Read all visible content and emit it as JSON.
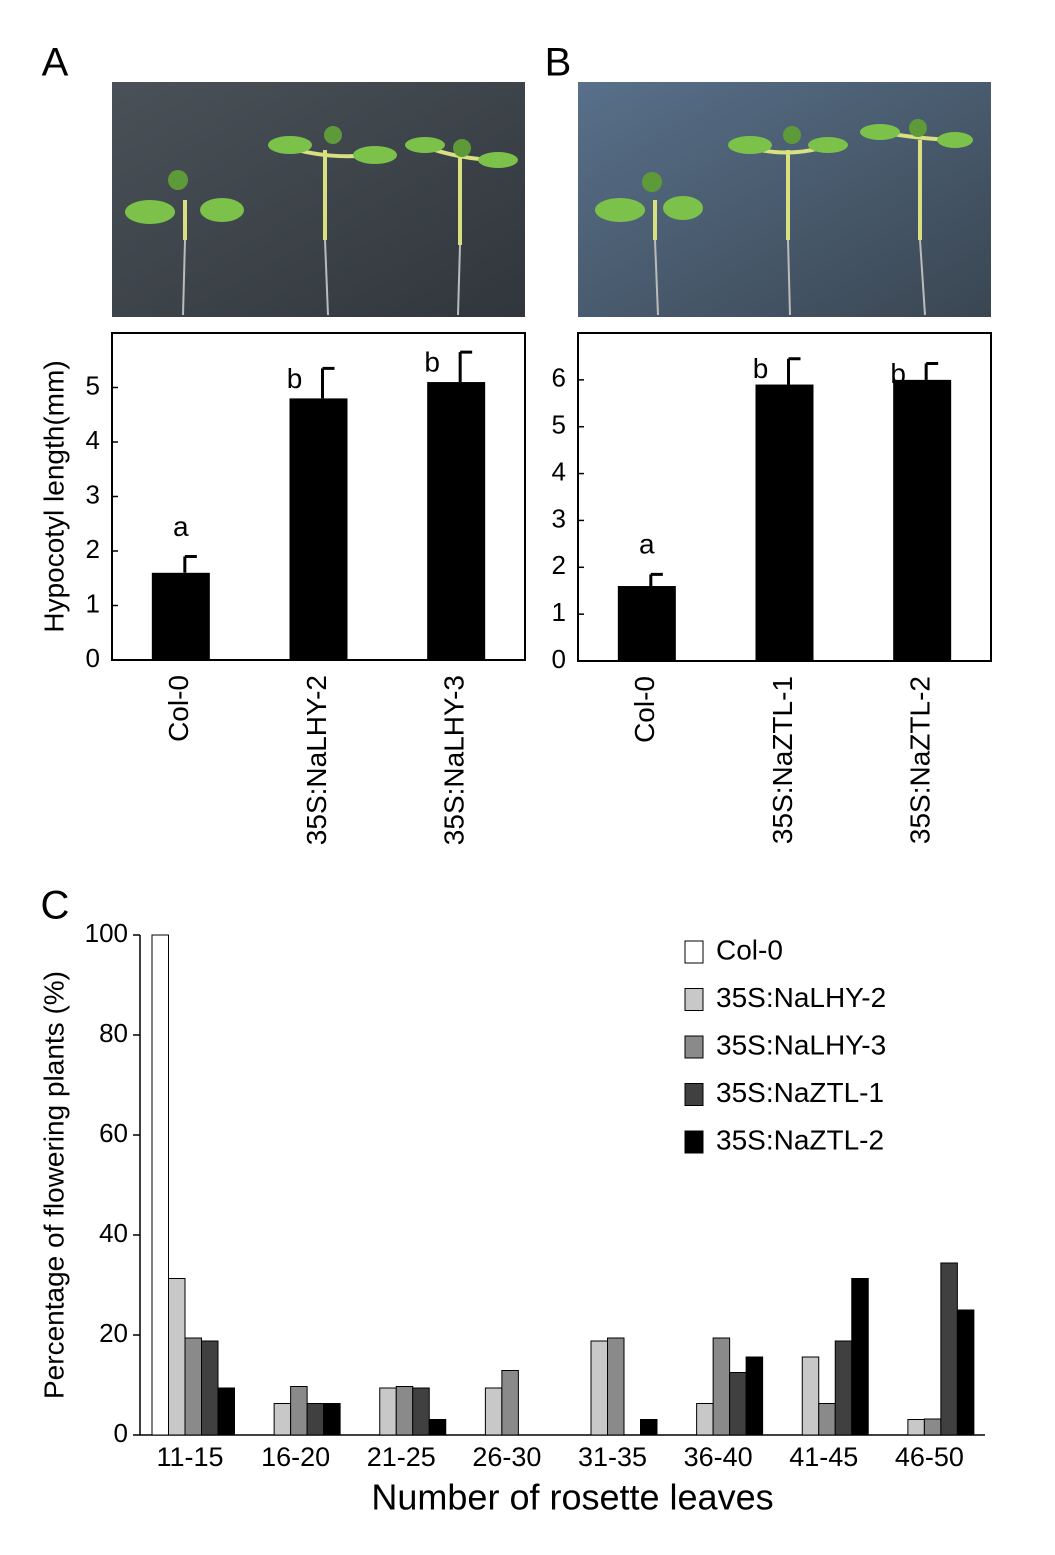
{
  "chart_data": [
    {
      "type": "bar",
      "panel_label": "A",
      "ylabel": "Hypocotyl length(mm)",
      "categories": [
        "Col-0",
        "35S:NaLHY-2",
        "35S:NaLHY-3"
      ],
      "values": [
        1.6,
        4.8,
        5.1
      ],
      "errors": [
        0.3,
        0.55,
        0.55
      ],
      "annotations": [
        "a",
        "b",
        "b"
      ],
      "color": "#000000",
      "ylim": [
        0,
        6
      ],
      "yticks": [
        0,
        1,
        2,
        3,
        4,
        5
      ]
    },
    {
      "type": "bar",
      "panel_label": "B",
      "categories": [
        "Col-0",
        "35S:NaZTL-1",
        "35S:NaZTL-2"
      ],
      "values": [
        1.6,
        5.9,
        6.0
      ],
      "errors": [
        0.25,
        0.55,
        0.35
      ],
      "annotations": [
        "a",
        "b",
        "b"
      ],
      "color": "#000000",
      "ylim": [
        0,
        7
      ],
      "yticks": [
        0,
        1,
        2,
        3,
        4,
        5,
        6
      ]
    },
    {
      "type": "grouped_bar",
      "panel_label": "C",
      "xlabel": "Number of rosette leaves",
      "ylabel": "Percentage of flowering plants (%)",
      "categories": [
        "11-15",
        "16-20",
        "21-25",
        "26-30",
        "31-35",
        "36-40",
        "41-45",
        "46-50"
      ],
      "series": [
        {
          "name": "Col-0",
          "color": "#ffffff",
          "values": [
            100,
            0,
            0,
            0,
            0,
            0,
            0,
            0
          ]
        },
        {
          "name": "35S:NaLHY-2",
          "color": "#c8c8c8",
          "values": [
            31.3,
            6.3,
            9.4,
            9.4,
            18.8,
            6.3,
            15.6,
            3.1
          ]
        },
        {
          "name": "35S:NaLHY-3",
          "color": "#8a8a8a",
          "values": [
            19.4,
            9.7,
            9.7,
            12.9,
            19.4,
            19.4,
            6.3,
            3.2
          ]
        },
        {
          "name": "35S:NaZTL-1",
          "color": "#404040",
          "values": [
            18.8,
            6.3,
            9.4,
            0,
            0,
            12.5,
            18.8,
            34.4
          ]
        },
        {
          "name": "35S:NaZTL-2",
          "color": "#000000",
          "values": [
            9.4,
            6.3,
            3.1,
            0,
            3.1,
            15.6,
            31.3,
            25
          ]
        }
      ],
      "ylim": [
        0,
        100
      ],
      "yticks": [
        0,
        20,
        40,
        60,
        80,
        100
      ],
      "legend": "upper right"
    }
  ]
}
